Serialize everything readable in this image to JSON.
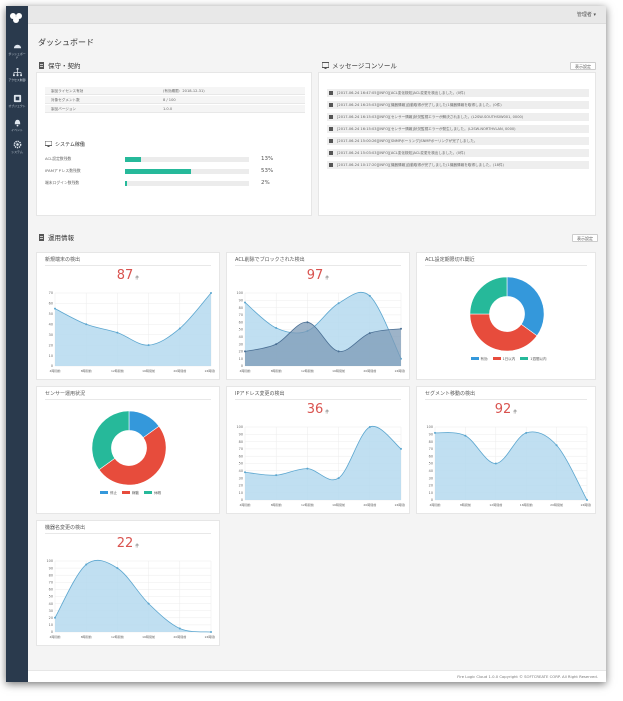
{
  "sidebar": {
    "items": [
      {
        "label": "ダッシュボード",
        "icon": "dashboard-icon"
      },
      {
        "label": "アクセス制御",
        "icon": "sitemap-icon"
      },
      {
        "label": "オブジェクト",
        "icon": "object-icon"
      },
      {
        "label": "イベント",
        "icon": "bell-icon"
      },
      {
        "label": "システム",
        "icon": "gear-icon"
      }
    ]
  },
  "header": {
    "user_menu": "管理者 ▾"
  },
  "page": {
    "title": "ダッシュボード"
  },
  "maintenance": {
    "title": "保守・契約",
    "rows": [
      {
        "key": "製品ライセンス有効",
        "value": "(有効期限：2018-12-31)"
      },
      {
        "key": "対象セグメント数",
        "value": "8 / 100"
      },
      {
        "key": "製品バージョン",
        "value": "1.0.0"
      }
    ],
    "system_title": "システム稼働",
    "bars": [
      {
        "label": "ACL設定数残数",
        "percent": 13,
        "text": "13%"
      },
      {
        "label": "IPAMアドレス数残数",
        "percent": 53,
        "text": "53%"
      },
      {
        "label": "端末ログイン数残数",
        "percent": 2,
        "text": "2%"
      }
    ]
  },
  "console": {
    "title": "メッセージコンソール",
    "settings_button": "表示設定",
    "messages": [
      "[2017-06-24 16:47:05][INFO][ACL変化検知]ACL変更を検出しました。(0件)",
      "[2017-06-24 16:25:03][INFO][機器情報]自動取得が完了しました(1機器情報を取得しました。(0件)",
      "[2017-06-24 16:15:03][INFO][センサー情報]状況監視エラーが解決されました。(L2SW-SOUTHSIW001, 0000)",
      "[2017-06-24 16:15:03][INFO][センサー情報]状況監視エラーが発生しました。(L2SW-NORTHVLAN, 0000)",
      "[2017-06-24 15:00:26][INFO][SNMPポーリング]SNMPポーリングが完了しました。",
      "[2017-06-24 15:03:03][INFO][ACL変化検知]ACL変更を検出しました。(0件)",
      "[2017-06-24 10:17:20][INFO][機器情報]自動取得が完了しました(1機器情報を取得しました。(18件)"
    ]
  },
  "operations": {
    "title": "運用情報",
    "settings_button": "表示設定"
  },
  "colors": {
    "accent": "#26b99a",
    "blue": "#3498db",
    "red": "#e74c3c",
    "line": "#5ba6cf",
    "fill": "#b5d9ee",
    "darkfill": "#7c9ab6"
  },
  "cards": [
    {
      "title": "新規端末の検出",
      "count": "87",
      "unit": "件"
    },
    {
      "title": "ACL削除でブロックされた検出",
      "count": "97",
      "unit": "件"
    },
    {
      "title": "ACL設定期限切れ閾近"
    },
    {
      "title": "センサー運用状況"
    },
    {
      "title": "IPアドレス変更の検出",
      "count": "36",
      "unit": "件"
    },
    {
      "title": "セグメント移動の検出",
      "count": "92",
      "unit": "件"
    },
    {
      "title": "機器名変更の検出",
      "count": "22",
      "unit": "件"
    }
  ],
  "chart_data": [
    {
      "type": "area",
      "title": "新規端末の検出",
      "x": [
        "4時間前",
        "8時間前",
        "12時間前",
        "16時間前",
        "20時間前",
        "24時間前"
      ],
      "series": [
        {
          "values": [
            55,
            40,
            32,
            20,
            36,
            70
          ]
        }
      ],
      "ylim": [
        0,
        70
      ],
      "yticks": [
        0,
        10,
        20,
        30,
        40,
        50,
        60,
        70
      ]
    },
    {
      "type": "area",
      "title": "ACL削除でブロックされた検出",
      "x": [
        "4時間前",
        "8時間前",
        "12時間前",
        "16時間前",
        "20時間前",
        "24時間前"
      ],
      "series": [
        {
          "values": [
            87,
            52,
            48,
            86,
            96,
            10
          ]
        },
        {
          "values": [
            20,
            30,
            60,
            20,
            45,
            51
          ]
        }
      ],
      "ylim": [
        0,
        100
      ],
      "yticks": [
        0,
        10,
        20,
        30,
        40,
        50,
        60,
        70,
        80,
        90,
        100
      ]
    },
    {
      "type": "pie",
      "title": "ACL設定期限切れ閾近",
      "legend": [
        "有効",
        "1日以内",
        "1週間以内"
      ],
      "values": [
        35,
        40,
        25
      ]
    },
    {
      "type": "pie",
      "title": "センサー運用状況",
      "legend": [
        "停止",
        "稼動",
        "休暇"
      ],
      "values": [
        15,
        50,
        35
      ]
    },
    {
      "type": "area",
      "title": "IPアドレス変更の検出",
      "x": [
        "4時間前",
        "8時間前",
        "12時間前",
        "16時間前",
        "20時間前",
        "24時間前"
      ],
      "series": [
        {
          "values": [
            38,
            34,
            43,
            30,
            100,
            70
          ]
        }
      ],
      "ylim": [
        0,
        100
      ],
      "yticks": [
        0,
        10,
        20,
        30,
        40,
        50,
        60,
        70,
        80,
        90,
        100
      ]
    },
    {
      "type": "area",
      "title": "セグメント移動の検出",
      "x": [
        "4時間前",
        "8時間前",
        "12時間前",
        "16時間前",
        "20時間前",
        "24時間前"
      ],
      "series": [
        {
          "values": [
            92,
            88,
            50,
            92,
            75,
            0
          ]
        }
      ],
      "ylim": [
        0,
        100
      ],
      "yticks": [
        0,
        10,
        20,
        30,
        40,
        50,
        60,
        70,
        80,
        90,
        100
      ]
    },
    {
      "type": "area",
      "title": "機器名変更の検出",
      "x": [
        "4時間前",
        "8時間前",
        "12時間前",
        "16時間前",
        "20時間前",
        "24時間前"
      ],
      "series": [
        {
          "values": [
            20,
            95,
            90,
            40,
            5,
            0
          ]
        }
      ],
      "ylim": [
        0,
        100
      ],
      "yticks": [
        0,
        10,
        20,
        30,
        40,
        50,
        60,
        70,
        80,
        90,
        100
      ]
    }
  ],
  "footer": {
    "text": "Fire Logic Cloud 1.0.0 Copyright © SOFTCREATE CORP. All Right Reserved."
  }
}
